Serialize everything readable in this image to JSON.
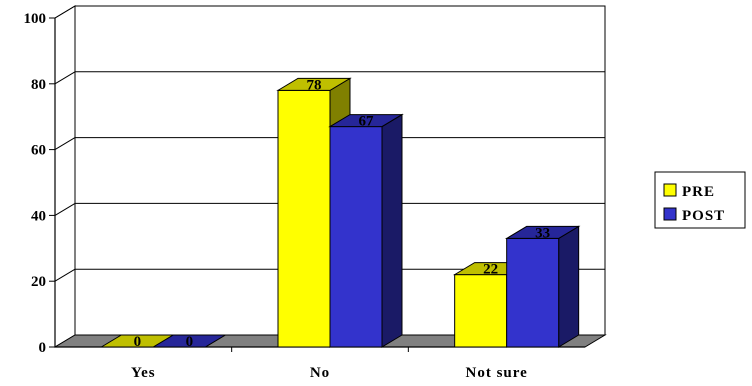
{
  "chart_data": {
    "type": "bar",
    "categories": [
      "Yes",
      "No",
      "Not sure"
    ],
    "series": [
      {
        "name": "PRE",
        "values": [
          0,
          78,
          22
        ],
        "color": "#FFFF00"
      },
      {
        "name": "POST",
        "values": [
          0,
          67,
          33
        ],
        "color": "#3333CC"
      }
    ],
    "title": "",
    "xlabel": "",
    "ylabel": "",
    "ylim": [
      0,
      100
    ],
    "yticks": [
      "0",
      "20",
      "40",
      "60",
      "80",
      "100"
    ],
    "grid": true,
    "legend": "right",
    "style": "3d"
  }
}
